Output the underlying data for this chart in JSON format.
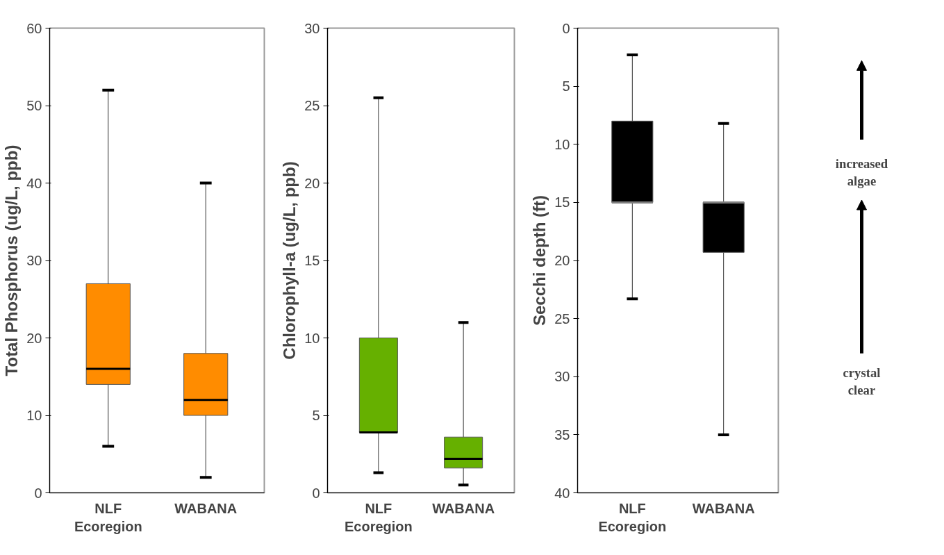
{
  "chart_data": [
    {
      "type": "box",
      "ylabel": "Total Phosphorus (ug/L, ppb)",
      "categories": [
        "NLF Ecoregion",
        "WABANA"
      ],
      "color": "#ff8c00",
      "ylim": [
        0,
        60
      ],
      "yticks": [
        0,
        10,
        20,
        30,
        40,
        50,
        60
      ],
      "grid": false,
      "boxes": [
        {
          "low": 6,
          "q1": 14,
          "median": 16,
          "q3": 27,
          "high": 52
        },
        {
          "low": 2,
          "q1": 10,
          "median": 12,
          "q3": 18,
          "high": 40
        }
      ]
    },
    {
      "type": "box",
      "ylabel": "Chlorophyll-a (ug/L, ppb)",
      "categories": [
        "NLF Ecoregion",
        "WABANA"
      ],
      "color": "#66b000",
      "ylim": [
        0,
        30
      ],
      "yticks": [
        0,
        5,
        10,
        15,
        20,
        25,
        30
      ],
      "grid": false,
      "boxes": [
        {
          "low": 1.3,
          "q1": 3.9,
          "median": 3.9,
          "q3": 10,
          "high": 25.5
        },
        {
          "low": 0.5,
          "q1": 1.6,
          "median": 2.2,
          "q3": 3.6,
          "high": 11
        }
      ]
    },
    {
      "type": "box",
      "ylabel": "Secchi depth (ft)",
      "categories": [
        "NLF Ecoregion",
        "WABANA"
      ],
      "color": "#000000",
      "ylim": [
        40,
        0
      ],
      "yticks": [
        0,
        5,
        10,
        15,
        20,
        25,
        30,
        35,
        40
      ],
      "grid": false,
      "boxes": [
        {
          "low": 2.3,
          "q1": 8,
          "median": 15,
          "q3": 15,
          "high": 23.3
        },
        {
          "low": 8.2,
          "q1": 15,
          "median": 15,
          "q3": 19.3,
          "high": 35
        }
      ],
      "annotations": [
        "increased algae",
        "crystal clear"
      ]
    }
  ]
}
